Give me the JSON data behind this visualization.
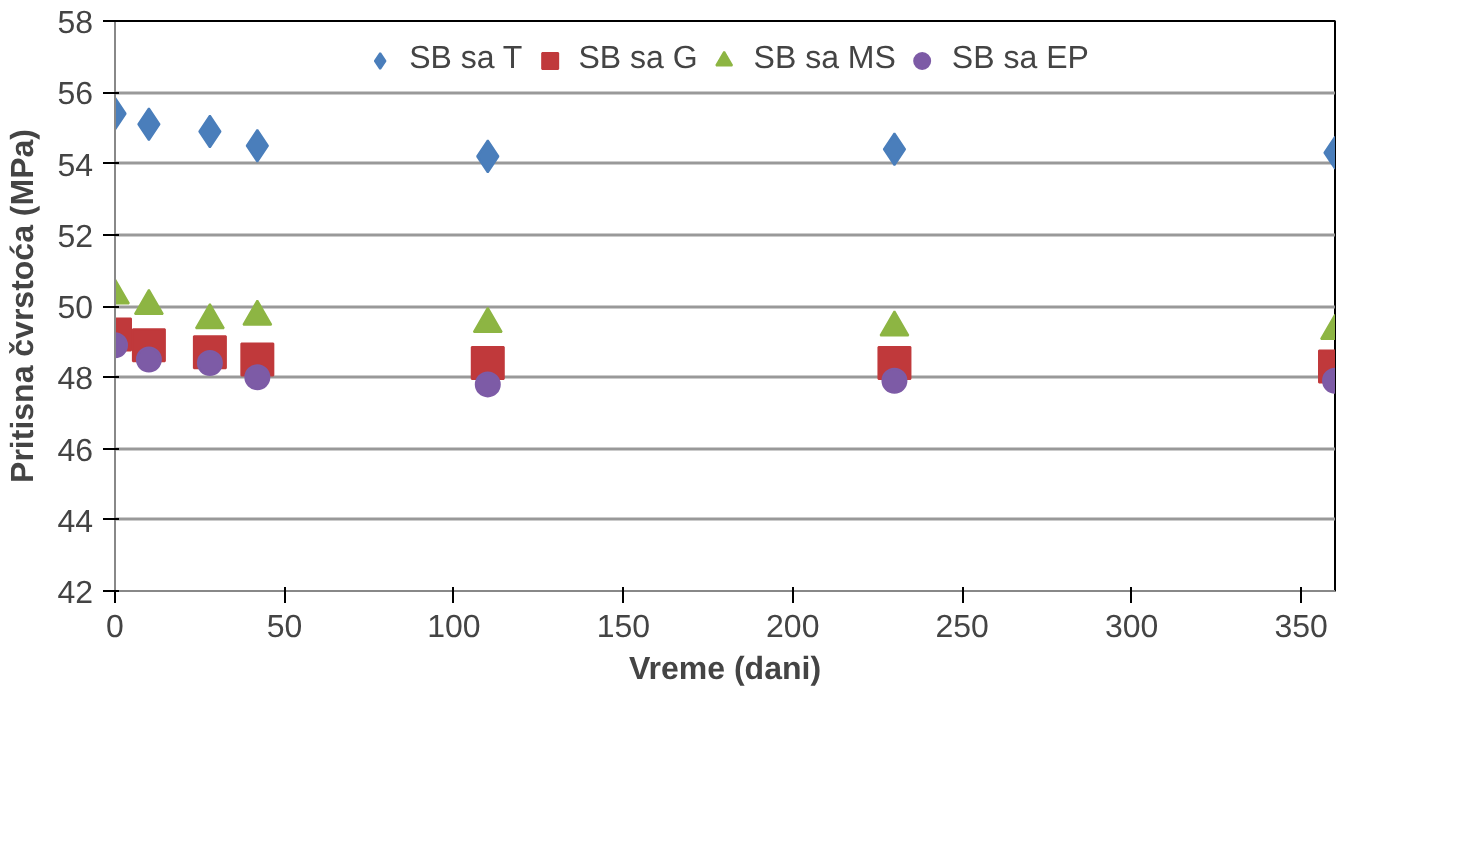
{
  "chart_data": {
    "type": "scatter",
    "xlabel": "Vreme (dani)",
    "ylabel": "Pritisna čvrstoća (MPa)",
    "x": [
      0,
      10,
      28,
      42,
      110,
      230,
      360
    ],
    "series": [
      {
        "name": "SB sa T",
        "color": "#4a7ebb",
        "marker": "diamond",
        "values": [
          55.4,
          55.1,
          54.9,
          54.5,
          54.2,
          54.4,
          54.3
        ]
      },
      {
        "name": "SB sa G",
        "color": "#c0393b",
        "marker": "square",
        "values": [
          49.2,
          48.9,
          48.7,
          48.5,
          48.4,
          48.4,
          48.3
        ]
      },
      {
        "name": "SB sa MS",
        "color": "#8db543",
        "marker": "triangle",
        "values": [
          50.3,
          50.0,
          49.6,
          49.7,
          49.5,
          49.4,
          49.3
        ]
      },
      {
        "name": "SB sa EP",
        "color": "#7d5ba6",
        "marker": "circle",
        "values": [
          48.9,
          48.5,
          48.4,
          48.0,
          47.8,
          47.9,
          47.9
        ]
      }
    ],
    "xlim": [
      0,
      360
    ],
    "xticks": [
      0,
      50,
      100,
      150,
      200,
      250,
      300,
      350
    ],
    "ylim": [
      42,
      58
    ],
    "yticks": [
      42,
      44,
      46,
      48,
      50,
      52,
      54,
      56,
      58
    ],
    "grid": "y",
    "legend": "top"
  }
}
